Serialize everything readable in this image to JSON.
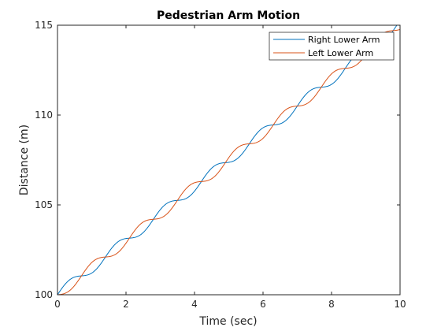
{
  "chart_data": {
    "type": "line",
    "title": "Pedestrian Arm Motion",
    "xlabel": "Time (sec)",
    "ylabel": "Distance (m)",
    "xlim": [
      0,
      10
    ],
    "ylim": [
      100,
      115
    ],
    "xticks": [
      0,
      2,
      4,
      6,
      8,
      10
    ],
    "yticks": [
      100,
      105,
      110,
      115
    ],
    "grid": false,
    "legend_position": "top-right",
    "series": [
      {
        "name": "Right Lower Arm",
        "color": "#0072BD",
        "start": 100.0,
        "speed": 1.5,
        "oscillation_amplitude": 0.3,
        "oscillation_period": 1.4,
        "phase": 0
      },
      {
        "name": "Left Lower Arm",
        "color": "#D95319",
        "start": 100.0,
        "speed": 1.5,
        "oscillation_amplitude": 0.3,
        "oscillation_period": 1.4,
        "phase": 3.14159
      }
    ]
  }
}
